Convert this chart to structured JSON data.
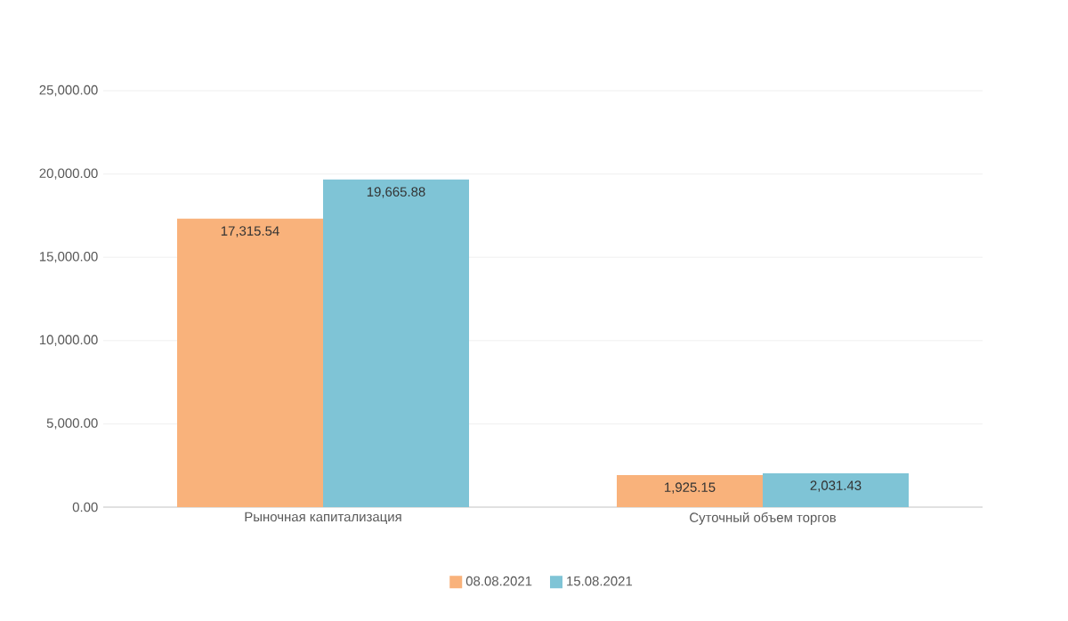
{
  "chart_data": {
    "type": "bar",
    "categories": [
      "Рыночная капитализация",
      "Суточный объем торгов"
    ],
    "series": [
      {
        "name": "08.08.2021",
        "color": "#f9b27b",
        "values": [
          17315.54,
          1925.15
        ],
        "value_labels": [
          "17,315.54",
          "1,925.15"
        ]
      },
      {
        "name": "15.08.2021",
        "color": "#7fc4d6",
        "values": [
          19665.88,
          2031.43
        ],
        "value_labels": [
          "19,665.88",
          "2,031.43"
        ]
      }
    ],
    "ylim": [
      0,
      25000
    ],
    "yticks": [
      {
        "value": 0,
        "label": "0.00"
      },
      {
        "value": 5000,
        "label": "5,000.00"
      },
      {
        "value": 10000,
        "label": "10,000.00"
      },
      {
        "value": 15000,
        "label": "15,000.00"
      },
      {
        "value": 20000,
        "label": "20,000.00"
      },
      {
        "value": 25000,
        "label": "25,000.00"
      }
    ],
    "grid": "y",
    "legend": "bottom"
  }
}
